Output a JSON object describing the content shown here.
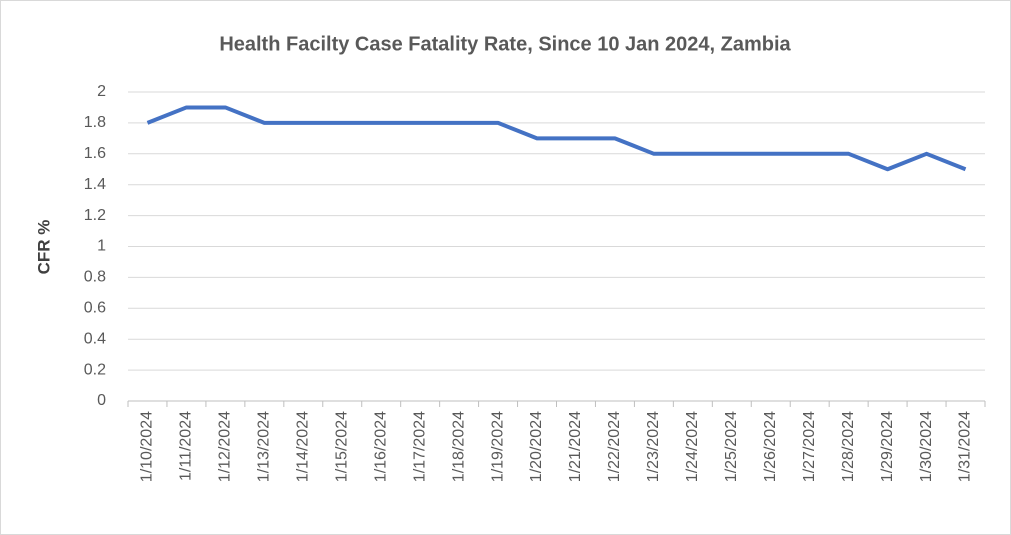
{
  "chart_data": {
    "type": "line",
    "title": "Health Facilty Case Fatality Rate, Since 10 Jan 2024, Zambia",
    "y_label": "CFR %",
    "categories": [
      "1/10/2024",
      "1/11/2024",
      "1/12/2024",
      "1/13/2024",
      "1/14/2024",
      "1/15/2024",
      "1/16/2024",
      "1/17/2024",
      "1/18/2024",
      "1/19/2024",
      "1/20/2024",
      "1/21/2024",
      "1/22/2024",
      "1/23/2024",
      "1/24/2024",
      "1/25/2024",
      "1/26/2024",
      "1/27/2024",
      "1/28/2024",
      "1/29/2024",
      "1/30/2024",
      "1/31/2024"
    ],
    "series": [
      {
        "name": "CFR",
        "color": "#4472c4",
        "values": [
          1.8,
          1.9,
          1.9,
          1.8,
          1.8,
          1.8,
          1.8,
          1.8,
          1.8,
          1.8,
          1.7,
          1.7,
          1.7,
          1.6,
          1.6,
          1.6,
          1.6,
          1.6,
          1.6,
          1.5,
          1.6,
          1.5
        ]
      }
    ],
    "ylim": [
      0,
      2
    ],
    "yticks": [
      0,
      0.2,
      0.4,
      0.6,
      0.8,
      1,
      1.2,
      1.4,
      1.6,
      1.8,
      2
    ],
    "grid": true
  }
}
